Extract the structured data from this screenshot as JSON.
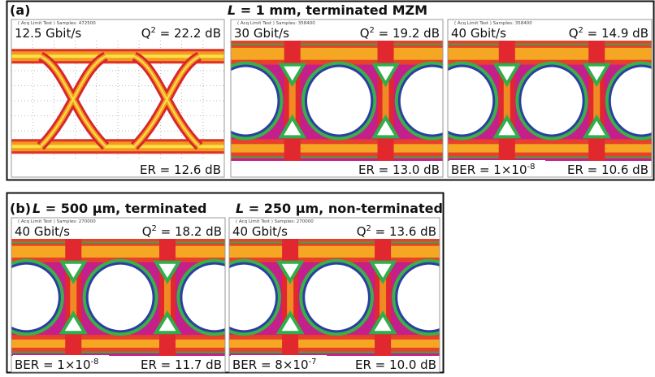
{
  "panel_a": {
    "label": "(a)",
    "title_italic": "L",
    "title_rest": " = 1 mm, terminated MZM",
    "eyes": [
      {
        "samples": "( Acq Limit Test )  Samples: 472500",
        "rate": "12.5 Gbit/s",
        "q": "Q",
        "q_sup": "2",
        "q_value": " = 22.2 dB",
        "er": "ER = 12.6 dB"
      },
      {
        "samples": "( Acq Limit Test )  Samples: 358400",
        "rate": "30 Gbit/s",
        "q": "Q",
        "q_sup": "2",
        "q_value": " = 19.2 dB",
        "er": "ER = 13.0 dB"
      },
      {
        "samples": "( Acq Limit Test )  Samples: 358400",
        "rate": "40 Gbit/s",
        "q": "Q",
        "q_sup": "2",
        "q_value": " = 14.9 dB",
        "er": "ER = 10.6 dB",
        "ber": "BER = 1×10",
        "ber_sup": "-8"
      }
    ]
  },
  "panel_b": {
    "label": "(b)",
    "eyes": [
      {
        "title_italic": "L",
        "title_rest": " = 500 µm, terminated",
        "samples": "( Acq Limit Test )  Samples: 270000",
        "rate": "40 Gbit/s",
        "q": "Q",
        "q_sup": "2",
        "q_value": " = 18.2 dB",
        "er": "ER = 11.7 dB",
        "ber": "BER = 1×10",
        "ber_sup": "-8"
      },
      {
        "title_italic": "L",
        "title_rest": " = 250 µm, non-terminated",
        "samples": "( Acq Limit Test )  Samples: 270000",
        "rate": "40 Gbit/s",
        "q": "Q",
        "q_sup": "2",
        "q_value": " = 13.6 dB",
        "er": "ER = 10.0 dB",
        "ber": "BER = 8×10",
        "ber_sup": "-7"
      }
    ]
  }
}
